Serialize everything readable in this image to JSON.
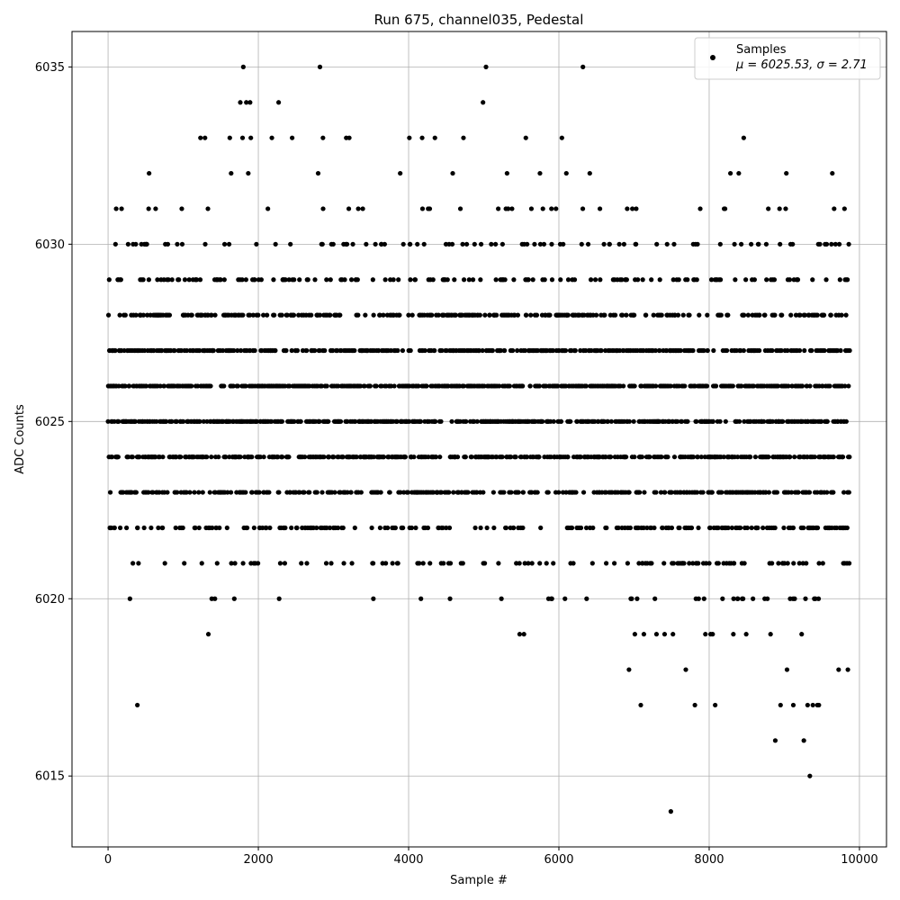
{
  "chart_data": {
    "type": "scatter",
    "title": "Run 675, channel035, Pedestal",
    "xlabel": "Sample #",
    "ylabel": "ADC Counts",
    "xlim": [
      -480,
      10360
    ],
    "ylim": [
      6013,
      6036
    ],
    "x_ticks": [
      0,
      2000,
      4000,
      6000,
      8000,
      10000
    ],
    "x_tick_labels": [
      "0",
      "2000",
      "4000",
      "6000",
      "8000",
      "10000"
    ],
    "y_ticks": [
      6015,
      6020,
      6025,
      6030,
      6035
    ],
    "y_tick_labels": [
      "6015",
      "6020",
      "6025",
      "6030",
      "6035"
    ],
    "grid": true,
    "legend": {
      "position": "top-right",
      "series_name": "Samples",
      "stats_label": "μ = 6025.53, σ = 2.71"
    },
    "marker_color": "#000000",
    "n_samples": 9873,
    "mean": 6025.53,
    "sigma": 2.71,
    "outliers": [
      {
        "x": 1800,
        "y": 6035
      },
      {
        "x": 2820,
        "y": 6035
      },
      {
        "x": 5030,
        "y": 6035
      },
      {
        "x": 6320,
        "y": 6035
      },
      {
        "x": 1760,
        "y": 6034
      },
      {
        "x": 1840,
        "y": 6034
      },
      {
        "x": 1890,
        "y": 6034
      },
      {
        "x": 2270,
        "y": 6034
      },
      {
        "x": 4990,
        "y": 6034
      },
      {
        "x": 1230,
        "y": 6033
      },
      {
        "x": 1290,
        "y": 6033
      },
      {
        "x": 1620,
        "y": 6033
      },
      {
        "x": 1790,
        "y": 6033
      },
      {
        "x": 1900,
        "y": 6033
      },
      {
        "x": 2180,
        "y": 6033
      },
      {
        "x": 2450,
        "y": 6033
      },
      {
        "x": 2860,
        "y": 6033
      },
      {
        "x": 3170,
        "y": 6033
      },
      {
        "x": 3210,
        "y": 6033
      },
      {
        "x": 4010,
        "y": 6033
      },
      {
        "x": 4180,
        "y": 6033
      },
      {
        "x": 4350,
        "y": 6033
      },
      {
        "x": 4730,
        "y": 6033
      },
      {
        "x": 5560,
        "y": 6033
      },
      {
        "x": 6040,
        "y": 6033
      },
      {
        "x": 8460,
        "y": 6033
      },
      {
        "x": 9340,
        "y": 6015
      },
      {
        "x": 7490,
        "y": 6014
      },
      {
        "x": 8880,
        "y": 6016
      },
      {
        "x": 9260,
        "y": 6016
      },
      {
        "x": 390,
        "y": 6017
      },
      {
        "x": 7090,
        "y": 6017
      },
      {
        "x": 7810,
        "y": 6017
      },
      {
        "x": 8080,
        "y": 6017
      },
      {
        "x": 8950,
        "y": 6017
      },
      {
        "x": 9120,
        "y": 6017
      },
      {
        "x": 9310,
        "y": 6017
      },
      {
        "x": 9380,
        "y": 6017
      },
      {
        "x": 9440,
        "y": 6017
      },
      {
        "x": 9460,
        "y": 6017
      }
    ]
  }
}
